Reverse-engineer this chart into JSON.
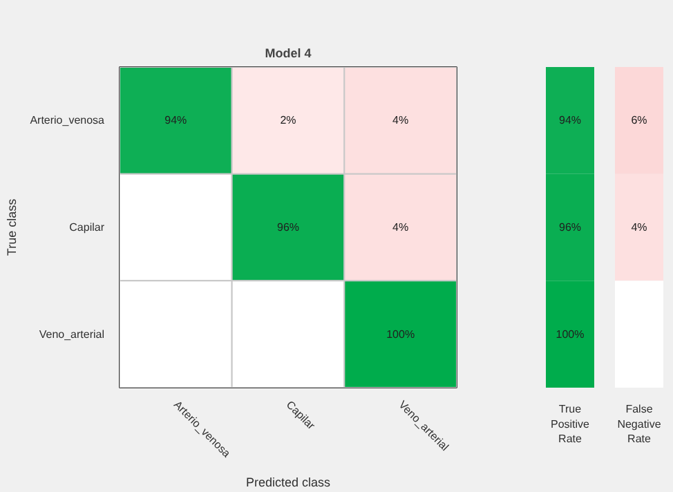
{
  "chart_data": [
    {
      "type": "heatmap",
      "title": "Model 4",
      "xlabel": "Predicted class",
      "ylabel": "True class",
      "categories": [
        "Arterio_venosa",
        "Capilar",
        "Veno_arterial"
      ],
      "y_categories": [
        "Arterio_venosa",
        "Capilar",
        "Veno_arterial"
      ],
      "cells": [
        [
          94,
          2,
          4
        ],
        [
          null,
          96,
          4
        ],
        [
          null,
          null,
          100
        ]
      ],
      "cell_labels": [
        [
          "94%",
          "2%",
          "4%"
        ],
        [
          null,
          "96%",
          "4%"
        ],
        [
          null,
          null,
          "100%"
        ]
      ]
    },
    {
      "type": "heatmap",
      "categories": [
        "True Positive Rate",
        "False Negative Rate"
      ],
      "y_categories": [
        null,
        null,
        null
      ],
      "cells": [
        [
          94,
          6
        ],
        [
          96,
          4
        ],
        [
          100,
          null
        ]
      ],
      "cell_labels": [
        [
          "94%",
          "6%"
        ],
        [
          "96%",
          "4%"
        ],
        [
          "100%",
          null
        ]
      ]
    }
  ]
}
